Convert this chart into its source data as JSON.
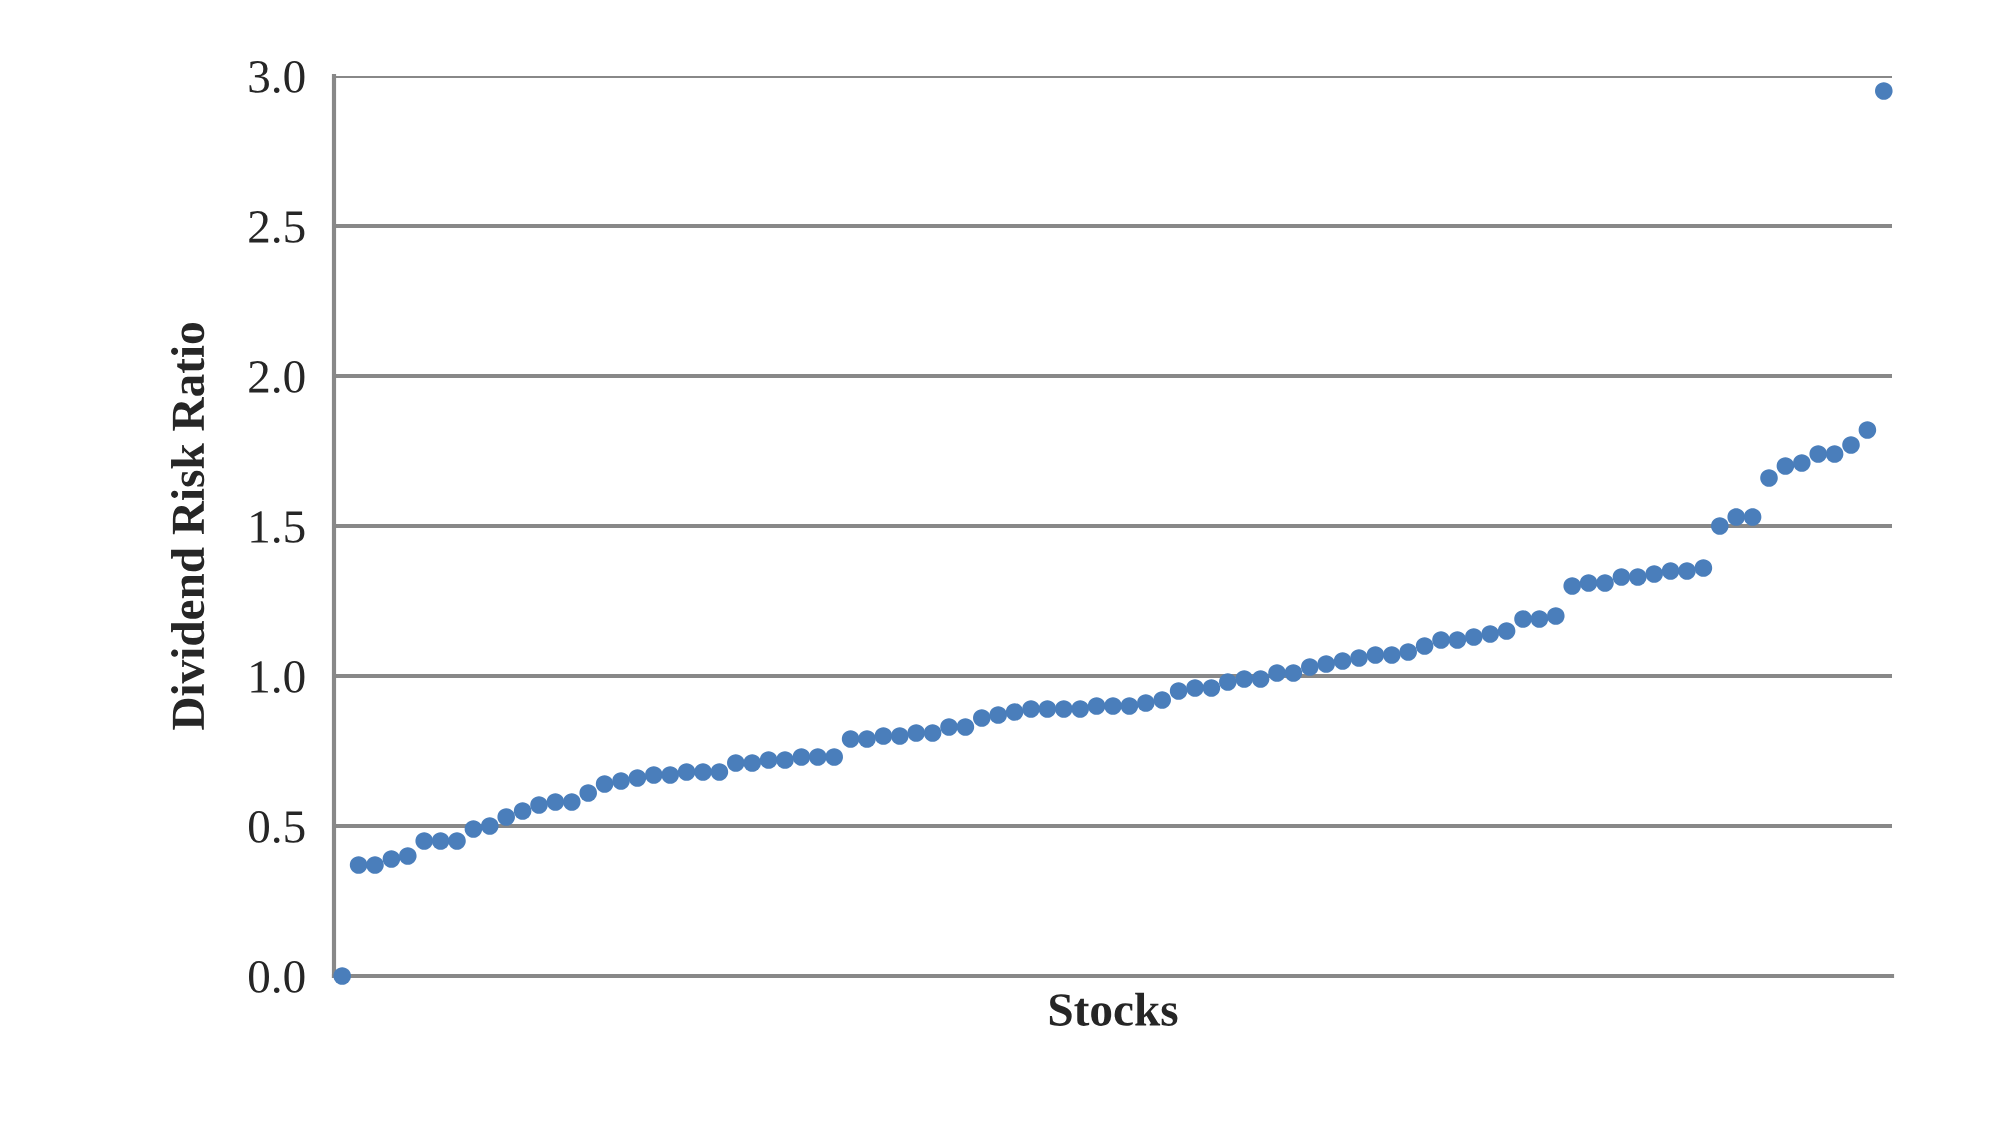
{
  "chart_data": {
    "type": "scatter",
    "xlabel": "Stocks",
    "ylabel": "Dividend Risk Ratio",
    "ylim": [
      0,
      3.0
    ],
    "yticks": [
      {
        "value": 0,
        "label": "0.0"
      },
      {
        "value": 0.5,
        "label": "0.5"
      },
      {
        "value": 1.0,
        "label": "1.0"
      },
      {
        "value": 1.5,
        "label": "1.5"
      },
      {
        "value": 2.0,
        "label": "2.0"
      },
      {
        "value": 2.5,
        "label": "2.5"
      },
      {
        "value": 3.0,
        "label": "3.0"
      }
    ],
    "categories": [
      null,
      null,
      null,
      null,
      null,
      null,
      null,
      null,
      null,
      null,
      null,
      null,
      null,
      null,
      null,
      null,
      null,
      null,
      null,
      null,
      null,
      null,
      null,
      null,
      null,
      null,
      null,
      null,
      null,
      null,
      null,
      null,
      null,
      null,
      null,
      null,
      null,
      null,
      null,
      null,
      null,
      null,
      null,
      null,
      null,
      null,
      null,
      null,
      null,
      null,
      null,
      null,
      null,
      null,
      null,
      null,
      null,
      null,
      null,
      null,
      null,
      null,
      null,
      null,
      null,
      null,
      null,
      null,
      null,
      null,
      null,
      null,
      null,
      null,
      null,
      null,
      null,
      null,
      null,
      null,
      null,
      null,
      null,
      null,
      null,
      null,
      null,
      null,
      null,
      null,
      null,
      null,
      null,
      null,
      null
    ],
    "grid": "y",
    "legend": false,
    "marker": "circle",
    "series": [
      {
        "color": "#4a7ebb",
        "values": [
          0,
          0.37,
          0.37,
          0.39,
          0.4,
          0.45,
          0.45,
          0.45,
          0.49,
          0.5,
          0.53,
          0.55,
          0.57,
          0.58,
          0.58,
          0.61,
          0.64,
          0.65,
          0.66,
          0.67,
          0.67,
          0.68,
          0.68,
          0.68,
          0.71,
          0.71,
          0.72,
          0.72,
          0.73,
          0.73,
          0.73,
          0.79,
          0.79,
          0.8,
          0.8,
          0.81,
          0.81,
          0.83,
          0.83,
          0.86,
          0.87,
          0.88,
          0.89,
          0.89,
          0.89,
          0.89,
          0.9,
          0.9,
          0.9,
          0.91,
          0.92,
          0.95,
          0.96,
          0.96,
          0.98,
          0.99,
          0.99,
          1.01,
          1.01,
          1.03,
          1.04,
          1.05,
          1.06,
          1.07,
          1.07,
          1.08,
          1.1,
          1.12,
          1.12,
          1.13,
          1.14,
          1.15,
          1.19,
          1.19,
          1.2,
          1.3,
          1.31,
          1.31,
          1.33,
          1.33,
          1.34,
          1.35,
          1.35,
          1.36,
          1.5,
          1.53,
          1.53,
          1.66,
          1.7,
          1.71,
          1.74,
          1.74,
          1.77,
          1.82,
          2.95
        ]
      }
    ]
  }
}
